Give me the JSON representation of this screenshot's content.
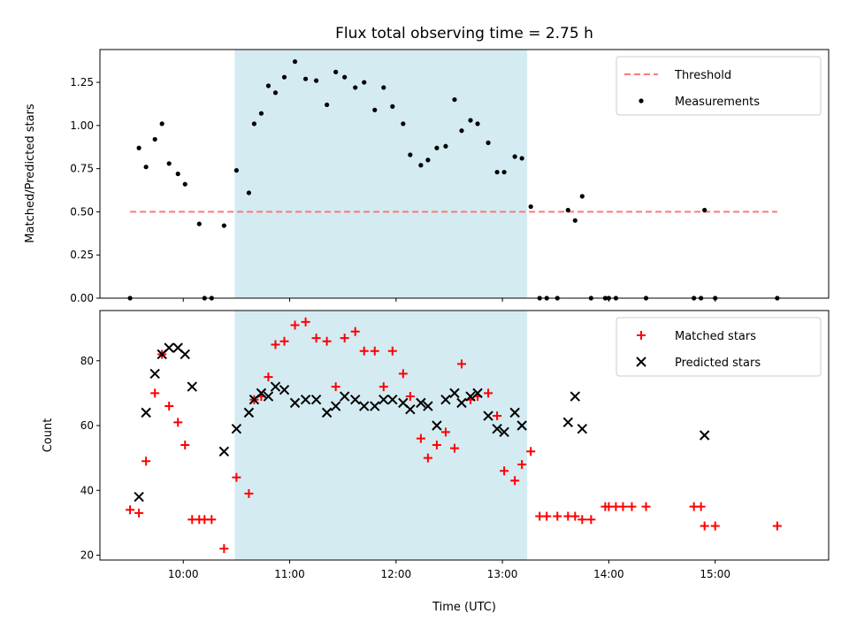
{
  "chart_data": [
    {
      "type": "scatter",
      "title": "Flux total observing time = 2.75 h",
      "xlabel": "",
      "ylabel": "Matched/Predicted stars",
      "ylim": [
        0,
        1.44
      ],
      "yticks": [
        0,
        0.25,
        0.5,
        0.75,
        1.0,
        1.25
      ],
      "ytick_labels": [
        "0.00",
        "0.25",
        "0.50",
        "0.75",
        "1.00",
        "1.25"
      ],
      "shaded_span": [
        "10:29",
        "13:14"
      ],
      "shaded_color": "#add8e6",
      "legend_position": "upper right",
      "threshold": {
        "label": "Threshold",
        "value": 0.5,
        "x_start": "09:30",
        "x_end": "15:35",
        "color": "#ff7777"
      },
      "series": [
        {
          "name": "Measurements",
          "color": "#000000",
          "points": [
            [
              "09:30",
              0.0
            ],
            [
              "09:35",
              0.87
            ],
            [
              "09:39",
              0.76
            ],
            [
              "09:44",
              0.92
            ],
            [
              "09:48",
              1.01
            ],
            [
              "09:52",
              0.78
            ],
            [
              "09:57",
              0.72
            ],
            [
              "10:01",
              0.66
            ],
            [
              "10:09",
              0.43
            ],
            [
              "10:12",
              0.0
            ],
            [
              "10:16",
              0.0
            ],
            [
              "10:23",
              0.42
            ],
            [
              "10:30",
              0.74
            ],
            [
              "10:37",
              0.61
            ],
            [
              "10:40",
              1.01
            ],
            [
              "10:44",
              1.07
            ],
            [
              "10:48",
              1.23
            ],
            [
              "10:52",
              1.19
            ],
            [
              "10:57",
              1.28
            ],
            [
              "11:03",
              1.37
            ],
            [
              "11:09",
              1.27
            ],
            [
              "11:15",
              1.26
            ],
            [
              "11:21",
              1.12
            ],
            [
              "11:26",
              1.31
            ],
            [
              "11:31",
              1.28
            ],
            [
              "11:37",
              1.22
            ],
            [
              "11:42",
              1.25
            ],
            [
              "11:48",
              1.09
            ],
            [
              "11:53",
              1.22
            ],
            [
              "11:58",
              1.11
            ],
            [
              "12:04",
              1.01
            ],
            [
              "12:08",
              0.83
            ],
            [
              "12:14",
              0.77
            ],
            [
              "12:18",
              0.8
            ],
            [
              "12:23",
              0.87
            ],
            [
              "12:28",
              0.88
            ],
            [
              "12:33",
              1.15
            ],
            [
              "12:37",
              0.97
            ],
            [
              "12:42",
              1.03
            ],
            [
              "12:46",
              1.01
            ],
            [
              "12:52",
              0.9
            ],
            [
              "12:57",
              0.73
            ],
            [
              "13:01",
              0.73
            ],
            [
              "13:07",
              0.82
            ],
            [
              "13:11",
              0.81
            ],
            [
              "13:16",
              0.53
            ],
            [
              "13:21",
              0.0
            ],
            [
              "13:25",
              0.0
            ],
            [
              "13:31",
              0.0
            ],
            [
              "13:37",
              0.51
            ],
            [
              "13:41",
              0.45
            ],
            [
              "13:45",
              0.59
            ],
            [
              "13:50",
              0.0
            ],
            [
              "13:58",
              0.0
            ],
            [
              "14:00",
              0.0
            ],
            [
              "14:04",
              0.0
            ],
            [
              "14:21",
              0.0
            ],
            [
              "14:48",
              0.0
            ],
            [
              "14:52",
              0.0
            ],
            [
              "14:54",
              0.51
            ],
            [
              "15:00",
              0.0
            ],
            [
              "15:35",
              0.0
            ]
          ]
        }
      ]
    },
    {
      "type": "scatter",
      "title": "",
      "xlabel": "Time (UTC)",
      "ylabel": "Count",
      "ylim": [
        18.5,
        95.5
      ],
      "yticks": [
        20,
        40,
        60,
        80
      ],
      "ytick_labels": [
        "20",
        "40",
        "60",
        "80"
      ],
      "xlim": [
        "09:13",
        "16:04"
      ],
      "xticks": [
        "10:00",
        "11:00",
        "12:00",
        "13:00",
        "14:00",
        "15:00"
      ],
      "shaded_span": [
        "10:29",
        "13:14"
      ],
      "shaded_color": "#add8e6",
      "legend_position": "upper right",
      "series": [
        {
          "name": "Matched stars",
          "marker": "plus",
          "color": "#ff0000",
          "points": [
            [
              "09:30",
              34
            ],
            [
              "09:35",
              33
            ],
            [
              "09:39",
              49
            ],
            [
              "09:44",
              70
            ],
            [
              "09:48",
              82
            ],
            [
              "09:52",
              66
            ],
            [
              "09:57",
              61
            ],
            [
              "10:01",
              54
            ],
            [
              "10:05",
              31
            ],
            [
              "10:09",
              31
            ],
            [
              "10:12",
              31
            ],
            [
              "10:16",
              31
            ],
            [
              "10:23",
              22
            ],
            [
              "10:30",
              44
            ],
            [
              "10:37",
              39
            ],
            [
              "10:40",
              68
            ],
            [
              "10:44",
              69
            ],
            [
              "10:48",
              75
            ],
            [
              "10:52",
              85
            ],
            [
              "10:57",
              86
            ],
            [
              "11:03",
              91
            ],
            [
              "11:09",
              92
            ],
            [
              "11:15",
              87
            ],
            [
              "11:21",
              86
            ],
            [
              "11:26",
              72
            ],
            [
              "11:31",
              87
            ],
            [
              "11:37",
              89
            ],
            [
              "11:42",
              83
            ],
            [
              "11:48",
              83
            ],
            [
              "11:53",
              72
            ],
            [
              "11:58",
              83
            ],
            [
              "12:04",
              76
            ],
            [
              "12:08",
              69
            ],
            [
              "12:14",
              56
            ],
            [
              "12:18",
              50
            ],
            [
              "12:23",
              54
            ],
            [
              "12:28",
              58
            ],
            [
              "12:33",
              53
            ],
            [
              "12:37",
              79
            ],
            [
              "12:42",
              68
            ],
            [
              "12:46",
              69
            ],
            [
              "12:52",
              70
            ],
            [
              "12:57",
              63
            ],
            [
              "13:01",
              46
            ],
            [
              "13:07",
              43
            ],
            [
              "13:11",
              48
            ],
            [
              "13:16",
              52
            ],
            [
              "13:21",
              32
            ],
            [
              "13:25",
              32
            ],
            [
              "13:31",
              32
            ],
            [
              "13:37",
              32
            ],
            [
              "13:41",
              32
            ],
            [
              "13:45",
              31
            ],
            [
              "13:50",
              31
            ],
            [
              "13:58",
              35
            ],
            [
              "14:00",
              35
            ],
            [
              "14:04",
              35
            ],
            [
              "14:08",
              35
            ],
            [
              "14:13",
              35
            ],
            [
              "14:21",
              35
            ],
            [
              "14:48",
              35
            ],
            [
              "14:52",
              35
            ],
            [
              "14:54",
              29
            ],
            [
              "15:00",
              29
            ],
            [
              "15:35",
              29
            ]
          ]
        },
        {
          "name": "Predicted stars",
          "marker": "x",
          "color": "#000000",
          "points": [
            [
              "09:35",
              38
            ],
            [
              "09:39",
              64
            ],
            [
              "09:44",
              76
            ],
            [
              "09:48",
              82
            ],
            [
              "09:52",
              84
            ],
            [
              "09:57",
              84
            ],
            [
              "10:01",
              82
            ],
            [
              "10:05",
              72
            ],
            [
              "10:23",
              52
            ],
            [
              "10:30",
              59
            ],
            [
              "10:37",
              64
            ],
            [
              "10:40",
              68
            ],
            [
              "10:44",
              70
            ],
            [
              "10:48",
              69
            ],
            [
              "10:52",
              72
            ],
            [
              "10:57",
              71
            ],
            [
              "11:03",
              67
            ],
            [
              "11:09",
              68
            ],
            [
              "11:15",
              68
            ],
            [
              "11:21",
              64
            ],
            [
              "11:26",
              66
            ],
            [
              "11:31",
              69
            ],
            [
              "11:37",
              68
            ],
            [
              "11:42",
              66
            ],
            [
              "11:48",
              66
            ],
            [
              "11:53",
              68
            ],
            [
              "11:58",
              68
            ],
            [
              "12:04",
              67
            ],
            [
              "12:08",
              65
            ],
            [
              "12:14",
              67
            ],
            [
              "12:18",
              66
            ],
            [
              "12:23",
              60
            ],
            [
              "12:28",
              68
            ],
            [
              "12:33",
              70
            ],
            [
              "12:37",
              67
            ],
            [
              "12:42",
              69
            ],
            [
              "12:46",
              70
            ],
            [
              "12:52",
              63
            ],
            [
              "12:57",
              59
            ],
            [
              "13:01",
              58
            ],
            [
              "13:07",
              64
            ],
            [
              "13:11",
              60
            ],
            [
              "13:37",
              61
            ],
            [
              "13:41",
              69
            ],
            [
              "13:45",
              59
            ],
            [
              "14:54",
              57
            ]
          ]
        }
      ]
    }
  ]
}
